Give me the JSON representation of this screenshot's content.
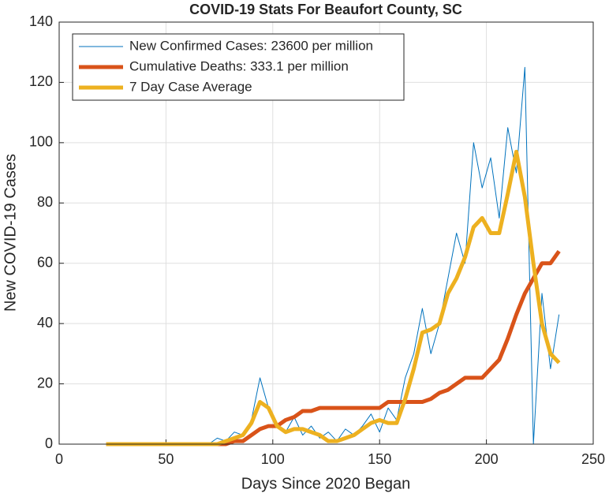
{
  "chart_data": {
    "type": "line",
    "title": "COVID-19 Stats For Beaufort County, SC",
    "xlabel": "Days Since 2020 Began",
    "ylabel": "New COVID-19 Cases",
    "x": [
      22,
      26,
      30,
      34,
      38,
      42,
      46,
      50,
      54,
      58,
      62,
      66,
      70,
      74,
      78,
      82,
      86,
      90,
      94,
      98,
      102,
      106,
      110,
      114,
      118,
      122,
      126,
      130,
      134,
      138,
      142,
      146,
      150,
      154,
      158,
      162,
      166,
      170,
      174,
      178,
      182,
      186,
      190,
      194,
      198,
      202,
      206,
      210,
      214,
      218,
      222,
      226,
      230,
      234
    ],
    "series": [
      {
        "name": "New Confirmed Cases: 23600 per million",
        "color": "#0072BD",
        "width": 1,
        "values": [
          0,
          0,
          0,
          0,
          0,
          0,
          0,
          0,
          0,
          0,
          0,
          0,
          0,
          2,
          1,
          4,
          3,
          8,
          22,
          12,
          6,
          4,
          9,
          3,
          6,
          2,
          4,
          1,
          5,
          3,
          6,
          10,
          4,
          12,
          8,
          22,
          30,
          45,
          30,
          40,
          55,
          70,
          60,
          100,
          85,
          95,
          75,
          105,
          90,
          125,
          0,
          50,
          25,
          43
        ]
      },
      {
        "name": "Cumulative Deaths: 333.1 per million",
        "color": "#D95319",
        "width": 5,
        "values": [
          0,
          0,
          0,
          0,
          0,
          0,
          0,
          0,
          0,
          0,
          0,
          0,
          0,
          0,
          0,
          1,
          1,
          3,
          5,
          6,
          6,
          8,
          9,
          11,
          11,
          12,
          12,
          12,
          12,
          12,
          12,
          12,
          12,
          14,
          14,
          14,
          14,
          14,
          15,
          17,
          18,
          20,
          22,
          22,
          22,
          25,
          28,
          35,
          43,
          50,
          55,
          60,
          60,
          64
        ]
      },
      {
        "name": "7 Day Case Average",
        "color": "#EDB120",
        "width": 5,
        "values": [
          0,
          0,
          0,
          0,
          0,
          0,
          0,
          0,
          0,
          0,
          0,
          0,
          0,
          0,
          1,
          2,
          3,
          7,
          14,
          12,
          6,
          4,
          5,
          5,
          4,
          3,
          1,
          1,
          2,
          3,
          5,
          7,
          8,
          7,
          7,
          15,
          25,
          37,
          38,
          40,
          50,
          55,
          62,
          72,
          75,
          70,
          70,
          83,
          97,
          82,
          60,
          40,
          30,
          27
        ]
      }
    ],
    "xlim": [
      0,
      250
    ],
    "xticks": [
      0,
      50,
      100,
      150,
      200,
      250
    ],
    "ylim": [
      0,
      140
    ],
    "yticks": [
      0,
      20,
      40,
      60,
      80,
      100,
      120,
      140
    ],
    "grid": true,
    "legend": "top-left"
  }
}
